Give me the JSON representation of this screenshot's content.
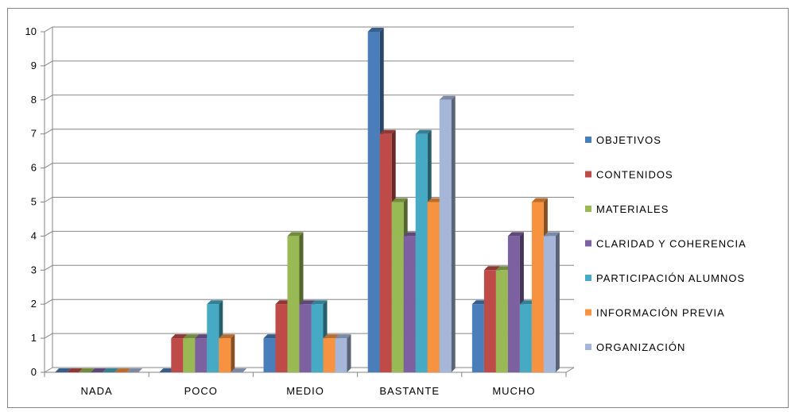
{
  "chart_data": {
    "type": "bar",
    "categories": [
      "NADA",
      "POCO",
      "MEDIO",
      "BASTANTE",
      "MUCHO"
    ],
    "series": [
      {
        "name": "OBJETIVOS",
        "values": [
          0,
          0,
          1,
          10,
          2
        ],
        "color": "#4a7ebb"
      },
      {
        "name": "CONTENIDOS",
        "values": [
          0,
          1,
          2,
          7,
          3
        ],
        "color": "#be4b48"
      },
      {
        "name": "MATERIALES",
        "values": [
          0,
          1,
          4,
          5,
          3
        ],
        "color": "#98b954"
      },
      {
        "name": "CLARIDAD Y COHERENCIA",
        "values": [
          0,
          1,
          2,
          4,
          4
        ],
        "color": "#7d60a0"
      },
      {
        "name": "PARTICIPACIÓN ALUMNOS",
        "values": [
          0,
          2,
          2,
          7,
          2
        ],
        "color": "#46aac5"
      },
      {
        "name": "INFORMACIÓN PREVIA",
        "values": [
          0,
          1,
          1,
          5,
          5
        ],
        "color": "#f69240"
      },
      {
        "name": "ORGANIZACIÓN",
        "values": [
          0,
          0,
          1,
          8,
          4
        ],
        "color": "#a5b6d9"
      }
    ],
    "yticks": [
      "0",
      "1",
      "2",
      "3",
      "4",
      "5",
      "6",
      "7",
      "8",
      "9",
      "10"
    ],
    "ylim": [
      0,
      10
    ],
    "grid": true,
    "legend": "right",
    "style": "3d-clustered-column"
  }
}
